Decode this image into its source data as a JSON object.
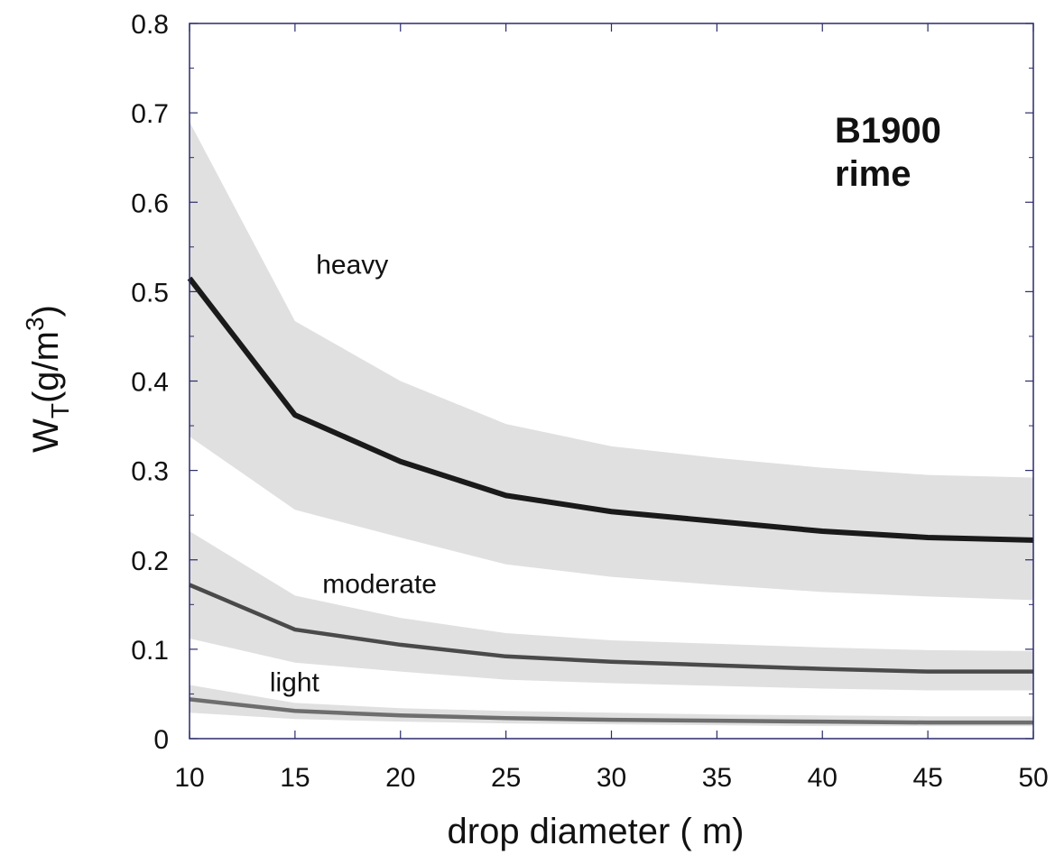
{
  "chart_data": {
    "type": "line",
    "title_lines": [
      "B1900",
      "rime"
    ],
    "xlabel": "drop diameter (  m)",
    "ylabel": "W_T(g/m^3)",
    "ylabel_parts": {
      "main": "W",
      "sub": "T",
      "mid": "(g/m",
      "sup": "3",
      "end": ")"
    },
    "xlim": [
      10,
      50
    ],
    "ylim": [
      0,
      0.8
    ],
    "xticks": [
      10,
      15,
      20,
      25,
      30,
      35,
      40,
      45,
      50
    ],
    "yticks": [
      0,
      0.1,
      0.2,
      0.3,
      0.4,
      0.5,
      0.6,
      0.7,
      0.8
    ],
    "ytick_labels": [
      "0",
      "0.1",
      "0.2",
      "0.3",
      "0.4",
      "0.5",
      "0.6",
      "0.7",
      "0.8"
    ],
    "grid": false,
    "x": [
      10,
      15,
      20,
      25,
      30,
      35,
      40,
      45,
      50
    ],
    "series": [
      {
        "name": "heavy",
        "values": [
          0.515,
          0.362,
          0.31,
          0.272,
          0.254,
          0.243,
          0.232,
          0.225,
          0.222
        ],
        "band_upper": [
          0.69,
          0.467,
          0.4,
          0.352,
          0.327,
          0.314,
          0.303,
          0.295,
          0.292
        ],
        "band_lower": [
          0.338,
          0.256,
          0.225,
          0.195,
          0.181,
          0.172,
          0.164,
          0.159,
          0.155
        ],
        "line_color": "#1a1a1a",
        "line_width": 6,
        "label_at": [
          16,
          0.52
        ]
      },
      {
        "name": "moderate",
        "values": [
          0.172,
          0.122,
          0.105,
          0.092,
          0.086,
          0.082,
          0.078,
          0.075,
          0.075
        ],
        "band_upper": [
          0.232,
          0.16,
          0.135,
          0.118,
          0.11,
          0.106,
          0.102,
          0.099,
          0.098
        ],
        "band_lower": [
          0.112,
          0.085,
          0.075,
          0.066,
          0.062,
          0.059,
          0.056,
          0.054,
          0.054
        ],
        "line_color": "#4a4a4a",
        "line_width": 4.5,
        "label_at": [
          16.3,
          0.163
        ]
      },
      {
        "name": "light",
        "values": [
          0.044,
          0.031,
          0.026,
          0.023,
          0.021,
          0.02,
          0.019,
          0.018,
          0.018
        ],
        "band_upper": [
          0.06,
          0.04,
          0.034,
          0.031,
          0.029,
          0.027,
          0.026,
          0.025,
          0.025
        ],
        "band_lower": [
          0.029,
          0.022,
          0.019,
          0.017,
          0.016,
          0.015,
          0.014,
          0.014,
          0.014
        ],
        "line_color": "#6e6e6e",
        "line_width": 4.5,
        "label_at": [
          13.8,
          0.053
        ]
      }
    ],
    "colors": {
      "band": "#e0e0e0",
      "frame": "#2b2b6b",
      "text": "#111111"
    }
  }
}
